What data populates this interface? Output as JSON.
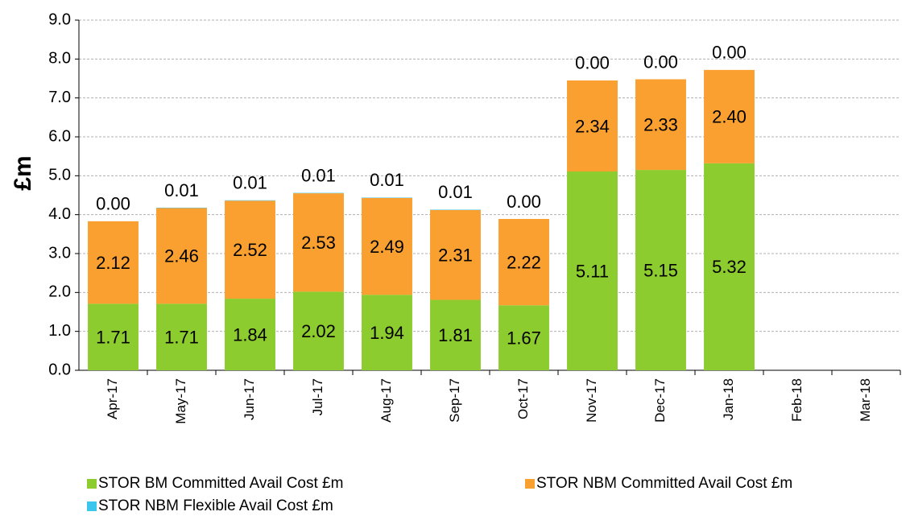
{
  "chart_data": {
    "type": "stacked_bar",
    "y_axis_label": "£m",
    "categories": [
      "Apr-17",
      "May-17",
      "Jun-17",
      "Jul-17",
      "Aug-17",
      "Sep-17",
      "Oct-17",
      "Nov-17",
      "Dec-17",
      "Jan-18",
      "Feb-18",
      "Mar-18"
    ],
    "series": [
      {
        "name": "STOR BM  Committed Avail Cost £m",
        "color": "#8ccc2e",
        "values": [
          1.71,
          1.71,
          1.84,
          2.02,
          1.94,
          1.81,
          1.67,
          5.11,
          5.15,
          5.32,
          null,
          null
        ],
        "value_labels": [
          "1.71",
          "1.71",
          "1.84",
          "2.02",
          "1.94",
          "1.81",
          "1.67",
          "5.11",
          "5.15",
          "5.32",
          null,
          null
        ]
      },
      {
        "name": "STOR NBM Committed Avail Cost £m",
        "color": "#f9a031",
        "values": [
          2.12,
          2.46,
          2.52,
          2.53,
          2.49,
          2.31,
          2.22,
          2.34,
          2.33,
          2.4,
          null,
          null
        ],
        "value_labels": [
          "2.12",
          "2.46",
          "2.52",
          "2.53",
          "2.49",
          "2.31",
          "2.22",
          "2.34",
          "2.33",
          "2.40",
          null,
          null
        ]
      },
      {
        "name": "STOR NBM Flexible Avail Cost £m",
        "color": "#3cc6ee",
        "values": [
          0,
          0.01,
          0.01,
          0.01,
          0.01,
          0.01,
          0,
          0,
          0,
          0,
          null,
          null
        ],
        "value_labels": [
          "0.00",
          "0.01",
          "0.01",
          "0.01",
          "0.01",
          "0.01",
          "0.00",
          "0.00",
          "0.00",
          "0.00",
          null,
          null
        ]
      }
    ],
    "ylim": [
      0,
      9
    ],
    "yticks": [
      {
        "value": 0,
        "label": "0.0"
      },
      {
        "value": 1,
        "label": "1.0"
      },
      {
        "value": 2,
        "label": "2.0"
      },
      {
        "value": 3,
        "label": "3.0"
      },
      {
        "value": 4,
        "label": "4.0"
      },
      {
        "value": 5,
        "label": "5.0"
      },
      {
        "value": 6,
        "label": "6.0"
      },
      {
        "value": 7,
        "label": "7.0"
      },
      {
        "value": 8,
        "label": "8.0"
      },
      {
        "value": 9,
        "label": "9.0"
      }
    ],
    "grid": true
  }
}
